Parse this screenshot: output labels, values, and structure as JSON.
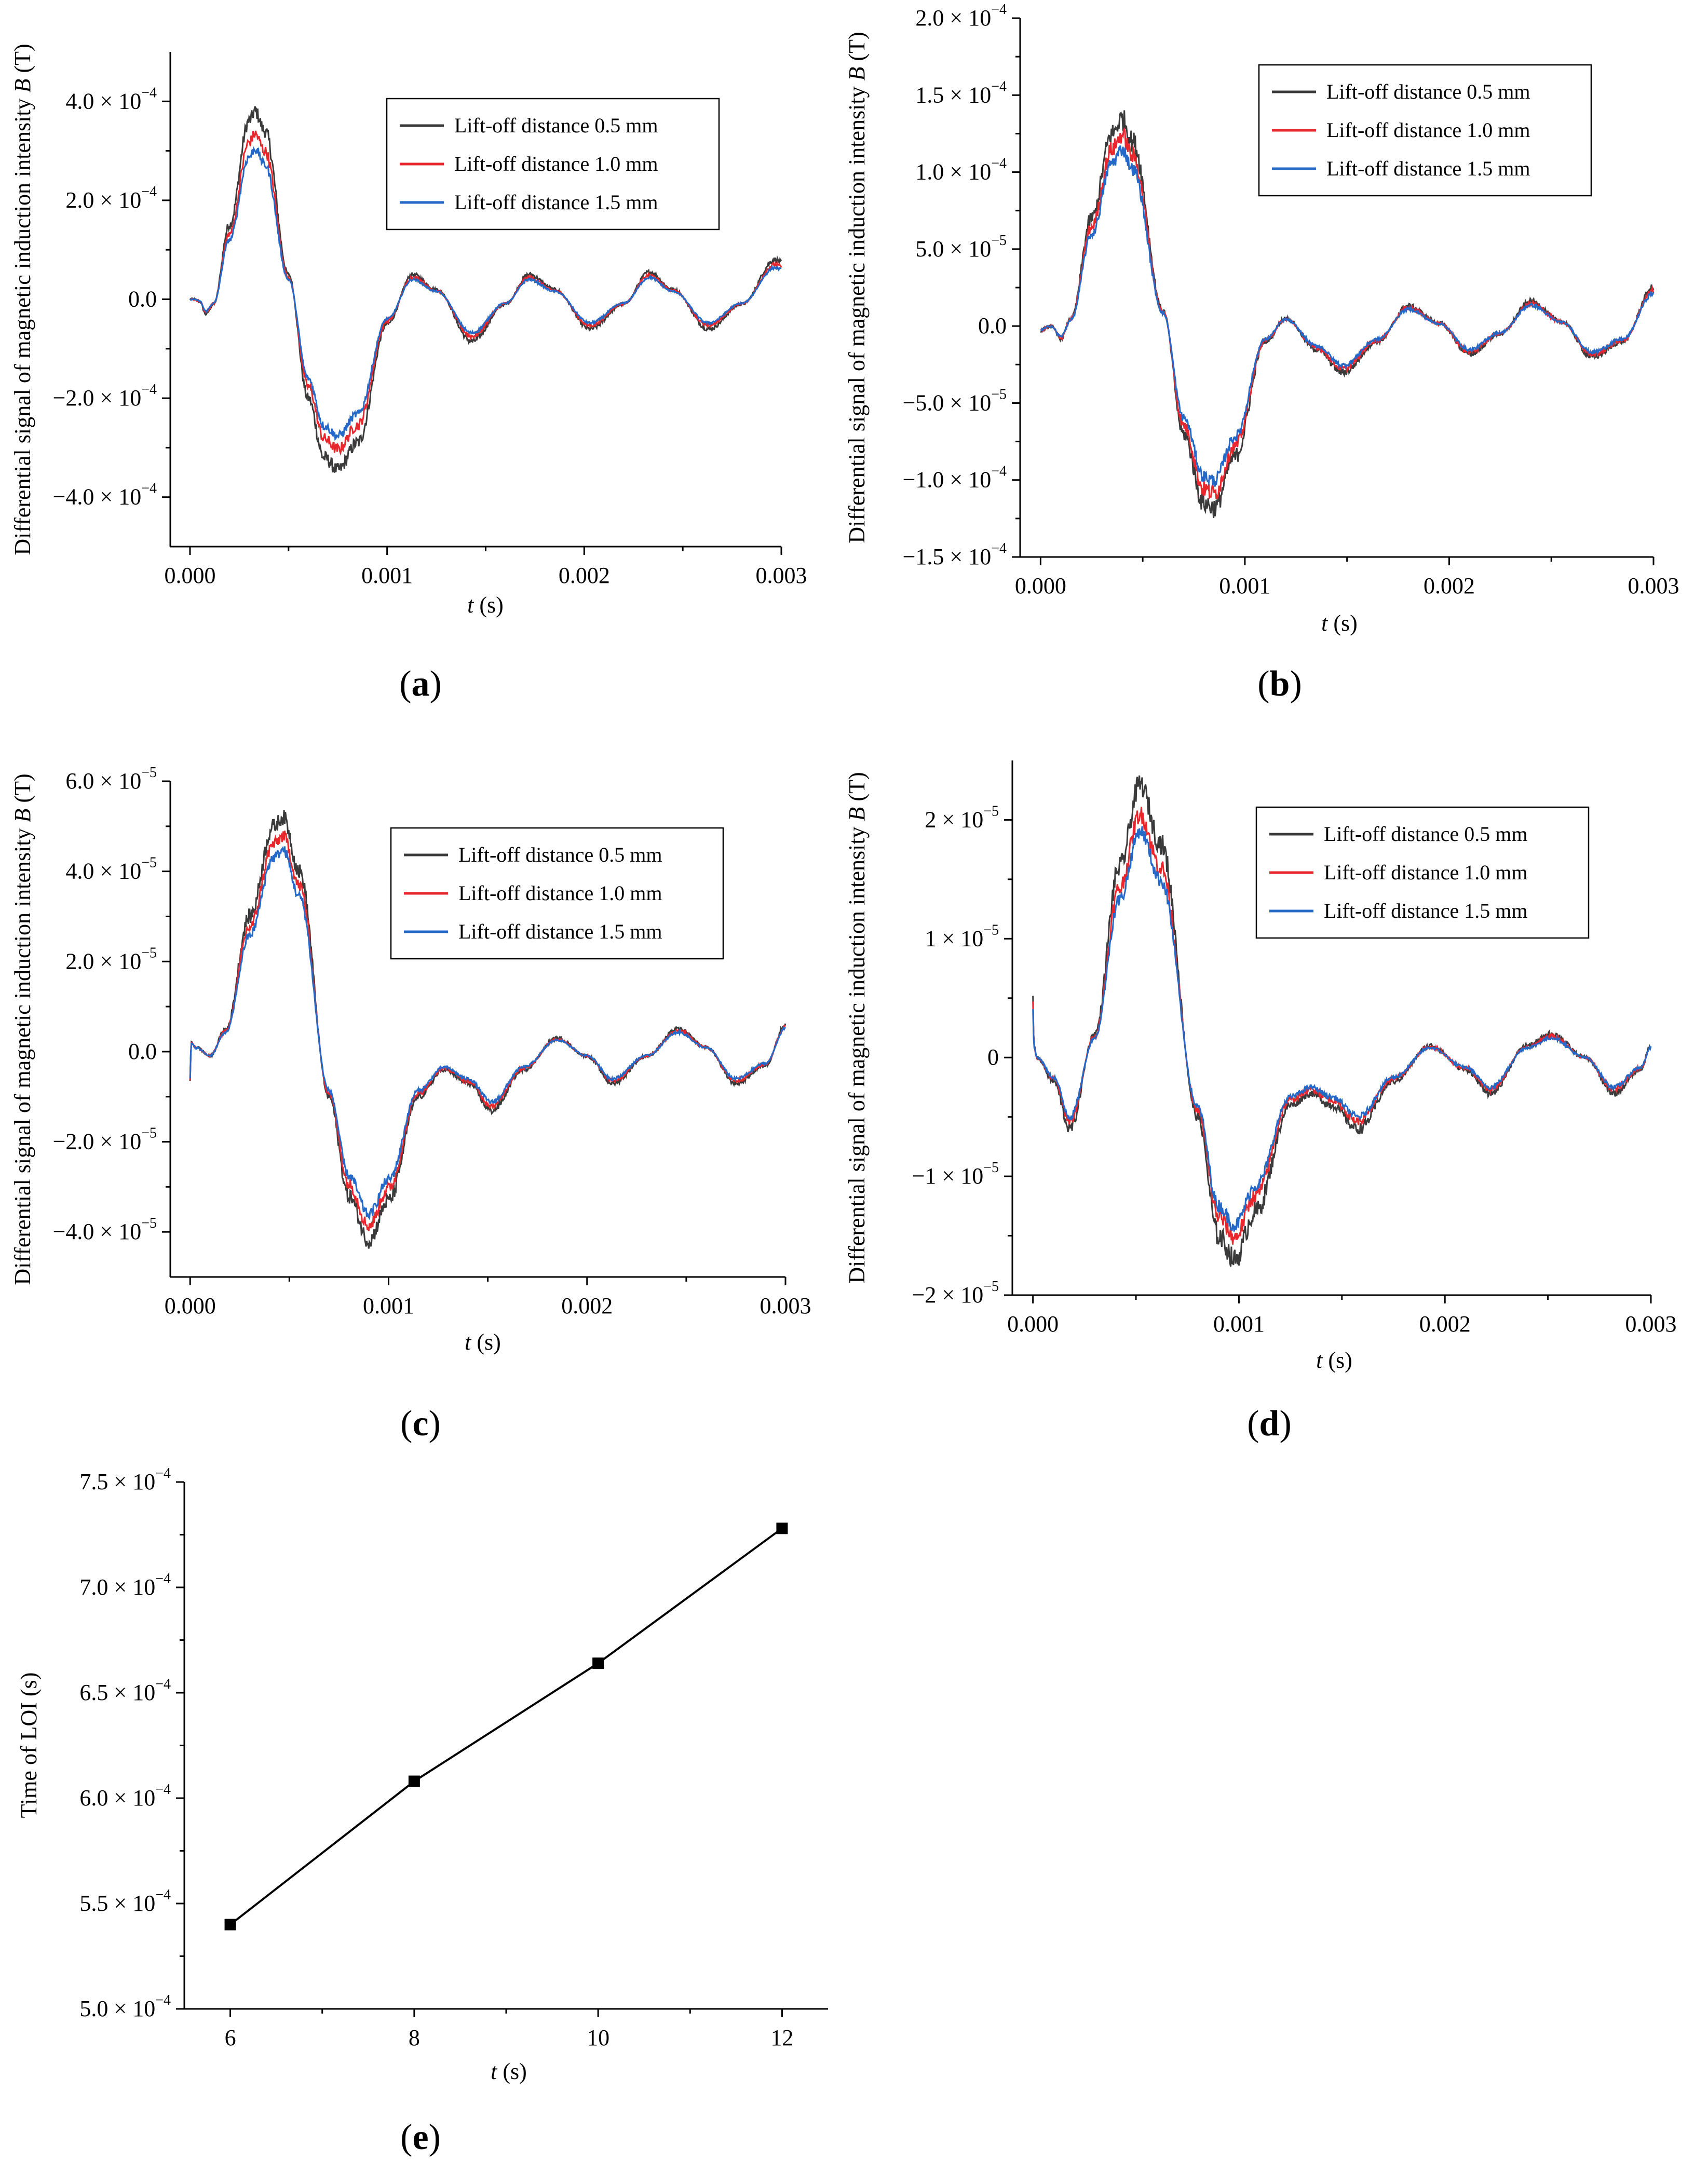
{
  "chart_data": [
    {
      "id": "a",
      "type": "line",
      "panel_label": "a",
      "xlabel_var": "t",
      "xlabel_unit": " (s)",
      "ylabel": "Differential signal of magnetic induction intensity",
      "ylabel_var": "B",
      "ylabel_unit": " (T)",
      "xlim": [
        -0.0001,
        0.003
      ],
      "ylim": [
        -0.0005,
        0.0005
      ],
      "xticks": [
        0.0,
        0.001,
        0.002,
        0.003
      ],
      "xtick_labels": [
        "0.000",
        "0.001",
        "0.002",
        "0.003"
      ],
      "yticks": [
        -0.0004,
        -0.0002,
        0,
        0.0002,
        0.0004
      ],
      "ytick_labels": [
        {
          "value": -0.0004,
          "mantissa": "−4.0 × 10",
          "exp": "−4"
        },
        {
          "value": -0.0002,
          "mantissa": "−2.0 × 10",
          "exp": "−4"
        },
        {
          "value": 0,
          "mantissa": "0.0",
          "exp": ""
        },
        {
          "value": 0.0002,
          "mantissa": "2.0 × 10",
          "exp": "−4"
        },
        {
          "value": 0.0004,
          "mantissa": "4.0 × 10",
          "exp": "−4"
        }
      ],
      "legend_position": "top-right",
      "noise": 1.2e-05,
      "signal_points": {
        "t": [
          0,
          2e-05,
          5e-05,
          8e-05,
          0.00012,
          0.0002,
          0.0003,
          0.00033,
          0.00038,
          0.0005,
          0.0006,
          0.00068,
          0.00075,
          0.00085,
          0.001,
          0.00113,
          0.00125,
          0.00143,
          0.0016,
          0.00172,
          0.00185,
          0.00203,
          0.0022,
          0.00233,
          0.00245,
          0.00263,
          0.0028,
          0.00297,
          0.003
        ],
        "v": [
          0,
          0,
          -5e-06,
          -3e-05,
          -1e-05,
          0.00015,
          0.00036,
          0.00038,
          0.00034,
          5e-05,
          -0.0002,
          -0.00032,
          -0.000345,
          -0.00029,
          -5e-05,
          5e-05,
          2e-05,
          -8.5e-05,
          -1e-05,
          5e-05,
          2e-05,
          -6e-05,
          -1e-05,
          5.5e-05,
          2e-05,
          -6e-05,
          -1e-05,
          8e-05,
          7.5e-05
        ]
      },
      "series": [
        {
          "name": "Lift-off distance 0.5 mm",
          "color": "#3a3a3a",
          "scale": 1.0
        },
        {
          "name": "Lift-off distance 1.0 mm",
          "color": "#e8272d",
          "scale": 0.88
        },
        {
          "name": "Lift-off distance 1.5 mm",
          "color": "#2468c8",
          "scale": 0.8
        }
      ]
    },
    {
      "id": "b",
      "type": "line",
      "panel_label": "b",
      "xlabel_var": "t",
      "xlabel_unit": " (s)",
      "ylabel": "Differential signal of magnetic induction intensity",
      "ylabel_var": "B",
      "ylabel_unit": " (T)",
      "xlim": [
        -0.0001,
        0.003
      ],
      "ylim": [
        -0.00015,
        0.0002
      ],
      "xticks": [
        0.0,
        0.001,
        0.002,
        0.003
      ],
      "xtick_labels": [
        "0.000",
        "0.001",
        "0.002",
        "0.003"
      ],
      "yticks": [
        -0.00015,
        -0.0001,
        -5e-05,
        0,
        5e-05,
        0.0001,
        0.00015,
        0.0002
      ],
      "ytick_labels": [
        {
          "value": -0.00015,
          "mantissa": "−1.5 × 10",
          "exp": "−4"
        },
        {
          "value": -0.0001,
          "mantissa": "−1.0 × 10",
          "exp": "−4"
        },
        {
          "value": -5e-05,
          "mantissa": "−5.0 × 10",
          "exp": "−5"
        },
        {
          "value": 0,
          "mantissa": "0.0",
          "exp": ""
        },
        {
          "value": 5e-05,
          "mantissa": "5.0 × 10",
          "exp": "−5"
        },
        {
          "value": 0.0001,
          "mantissa": "1.0 × 10",
          "exp": "−4"
        },
        {
          "value": 0.00015,
          "mantissa": "1.5 × 10",
          "exp": "−4"
        },
        {
          "value": 0.0002,
          "mantissa": "2.0 × 10",
          "exp": "−4"
        }
      ],
      "legend_position": "top-right",
      "noise": 6e-06,
      "signal_points": {
        "t": [
          0,
          5e-05,
          0.0001,
          0.00015,
          0.00025,
          0.00035,
          0.0004,
          0.00045,
          0.0006,
          0.0007,
          0.0008,
          0.00085,
          0.00095,
          0.0011,
          0.0012,
          0.00135,
          0.00148,
          0.00165,
          0.0018,
          0.00195,
          0.0021,
          0.00225,
          0.0024,
          0.00255,
          0.0027,
          0.00285,
          0.003
        ],
        "v": [
          -3e-06,
          0,
          -8e-06,
          5e-06,
          7e-05,
          0.000125,
          0.000135,
          0.00012,
          1e-05,
          -7e-05,
          -0.000115,
          -0.000118,
          -8.5e-05,
          -1e-05,
          5e-06,
          -1.5e-05,
          -3e-05,
          -1e-05,
          1.3e-05,
          2e-06,
          -1.8e-05,
          -5e-06,
          1.6e-05,
          3e-06,
          -2e-05,
          -1e-05,
          2.5e-05
        ]
      },
      "series": [
        {
          "name": "Lift-off distance 0.5 mm",
          "color": "#3a3a3a",
          "scale": 1.0
        },
        {
          "name": "Lift-off distance 1.0 mm",
          "color": "#e8272d",
          "scale": 0.92
        },
        {
          "name": "Lift-off distance 1.5 mm",
          "color": "#2468c8",
          "scale": 0.85
        }
      ]
    },
    {
      "id": "c",
      "type": "line",
      "panel_label": "c",
      "xlabel_var": "t",
      "xlabel_unit": " (s)",
      "ylabel": "Differential signal of magnetic induction intensity",
      "ylabel_var": "B",
      "ylabel_unit": " (T)",
      "xlim": [
        -0.0001,
        0.003
      ],
      "ylim": [
        -5e-05,
        6e-05
      ],
      "xticks": [
        0.0,
        0.001,
        0.002,
        0.003
      ],
      "xtick_labels": [
        "0.000",
        "0.001",
        "0.002",
        "0.003"
      ],
      "yticks": [
        -4e-05,
        -2e-05,
        0,
        2e-05,
        4e-05,
        6e-05
      ],
      "ytick_labels": [
        {
          "value": -4e-05,
          "mantissa": "−4.0 × 10",
          "exp": "−5"
        },
        {
          "value": -2e-05,
          "mantissa": "−2.0 × 10",
          "exp": "−5"
        },
        {
          "value": 0,
          "mantissa": "0.0",
          "exp": ""
        },
        {
          "value": 2e-05,
          "mantissa": "2.0 × 10",
          "exp": "−5"
        },
        {
          "value": 4e-05,
          "mantissa": "4.0 × 10",
          "exp": "−5"
        },
        {
          "value": 6e-05,
          "mantissa": "6.0 × 10",
          "exp": "−5"
        }
      ],
      "legend_position": "top-right",
      "noise": 1.5e-06,
      "signal_points": {
        "t": [
          0,
          5e-06,
          3e-05,
          0.0001,
          0.00018,
          0.0003,
          0.00042,
          0.00047,
          0.00055,
          0.0007,
          0.0008,
          0.0009,
          0.001,
          0.00115,
          0.00128,
          0.0014,
          0.00152,
          0.00168,
          0.00185,
          0.002,
          0.00213,
          0.0023,
          0.00246,
          0.0026,
          0.00275,
          0.0029,
          0.003
        ],
        "v": [
          -7e-06,
          2e-06,
          1e-06,
          -1e-06,
          5e-06,
          3e-05,
          5e-05,
          5.2e-05,
          4e-05,
          -1e-05,
          -3.2e-05,
          -4.2e-05,
          -3.3e-05,
          -1e-05,
          -4e-06,
          -7e-06,
          -1.3e-05,
          -4e-06,
          3e-06,
          -1e-06,
          -7e-06,
          -1e-06,
          5e-06,
          1e-06,
          -7e-06,
          -3e-06,
          6e-06
        ]
      },
      "series": [
        {
          "name": "Lift-off distance 0.5 mm",
          "color": "#3a3a3a",
          "scale": 1.0
        },
        {
          "name": "Lift-off distance 1.0 mm",
          "color": "#e8272d",
          "scale": 0.92
        },
        {
          "name": "Lift-off distance 1.5 mm",
          "color": "#2468c8",
          "scale": 0.86
        }
      ]
    },
    {
      "id": "d",
      "type": "line",
      "panel_label": "d",
      "xlabel_var": "t",
      "xlabel_unit": " (s)",
      "ylabel": "Differential signal of magnetic induction intensity",
      "ylabel_var": "B",
      "ylabel_unit": " (T)",
      "xlim": [
        -0.0001,
        0.003
      ],
      "ylim": [
        -2e-05,
        2.5e-05
      ],
      "xticks": [
        0.0,
        0.001,
        0.002,
        0.003
      ],
      "xtick_labels": [
        "0.000",
        "0.001",
        "0.002",
        "0.003"
      ],
      "yticks": [
        -2e-05,
        -1e-05,
        0,
        1e-05,
        2e-05
      ],
      "ytick_labels": [
        {
          "value": -2e-05,
          "mantissa": "−2 × 10",
          "exp": "−5"
        },
        {
          "value": -1e-05,
          "mantissa": "−1 × 10",
          "exp": "−5"
        },
        {
          "value": 0,
          "mantissa": "0",
          "exp": ""
        },
        {
          "value": 1e-05,
          "mantissa": "1 × 10",
          "exp": "−5"
        },
        {
          "value": 2e-05,
          "mantissa": "2 × 10",
          "exp": "−5"
        }
      ],
      "legend_position": "top-right",
      "noise": 8e-07,
      "signal_points": {
        "t": [
          0,
          5e-06,
          2e-05,
          0.0001,
          0.00018,
          0.0003,
          0.00042,
          0.00052,
          0.00062,
          0.0008,
          0.0009,
          0.00098,
          0.00108,
          0.00125,
          0.00135,
          0.00145,
          0.00158,
          0.00175,
          0.00193,
          0.0021,
          0.00222,
          0.0024,
          0.00252,
          0.00268,
          0.00282,
          0.00295,
          0.003
        ],
        "v": [
          5e-06,
          1e-06,
          0,
          -2e-06,
          -6e-06,
          2e-06,
          1.6e-05,
          2.3e-05,
          1.8e-05,
          -5e-06,
          -1.5e-05,
          -1.7e-05,
          -1.3e-05,
          -4e-06,
          -3e-06,
          -4e-06,
          -6e-06,
          -2e-06,
          1e-06,
          -1e-06,
          -3e-06,
          1e-06,
          2e-06,
          0,
          -3e-06,
          -1e-06,
          1e-06
        ]
      },
      "series": [
        {
          "name": "Lift-off distance 0.5 mm",
          "color": "#3a3a3a",
          "scale": 1.0
        },
        {
          "name": "Lift-off distance 1.0 mm",
          "color": "#e8272d",
          "scale": 0.89
        },
        {
          "name": "Lift-off distance 1.5 mm",
          "color": "#2468c8",
          "scale": 0.83
        }
      ]
    },
    {
      "id": "e",
      "type": "line",
      "panel_label": "e",
      "xlabel_var": "t",
      "xlabel_unit": " (s)",
      "ylabel": "Time of LOI (s)",
      "ylabel_var": "",
      "ylabel_unit": "",
      "xlim": [
        5.5,
        12.5
      ],
      "ylim": [
        0.0005,
        0.00075
      ],
      "xticks": [
        6,
        8,
        10,
        12
      ],
      "xtick_labels": [
        "6",
        "8",
        "10",
        "12"
      ],
      "yticks": [
        0.0005,
        0.00055,
        0.0006,
        0.00065,
        0.0007,
        0.00075
      ],
      "ytick_labels": [
        {
          "value": 0.0005,
          "mantissa": "5.0 × 10",
          "exp": "−4"
        },
        {
          "value": 0.00055,
          "mantissa": "5.5 × 10",
          "exp": "−4"
        },
        {
          "value": 0.0006,
          "mantissa": "6.0 × 10",
          "exp": "−4"
        },
        {
          "value": 0.00065,
          "mantissa": "6.5 × 10",
          "exp": "−4"
        },
        {
          "value": 0.0007,
          "mantissa": "7.0 × 10",
          "exp": "−4"
        },
        {
          "value": 0.00075,
          "mantissa": "7.5 × 10",
          "exp": "−4"
        }
      ],
      "x": [
        6,
        8,
        10,
        12
      ],
      "y": [
        0.00054,
        0.000608,
        0.000664,
        0.000728
      ],
      "series": [
        {
          "name": "Time of LOI",
          "color": "#000000",
          "marker": "square"
        }
      ]
    }
  ]
}
